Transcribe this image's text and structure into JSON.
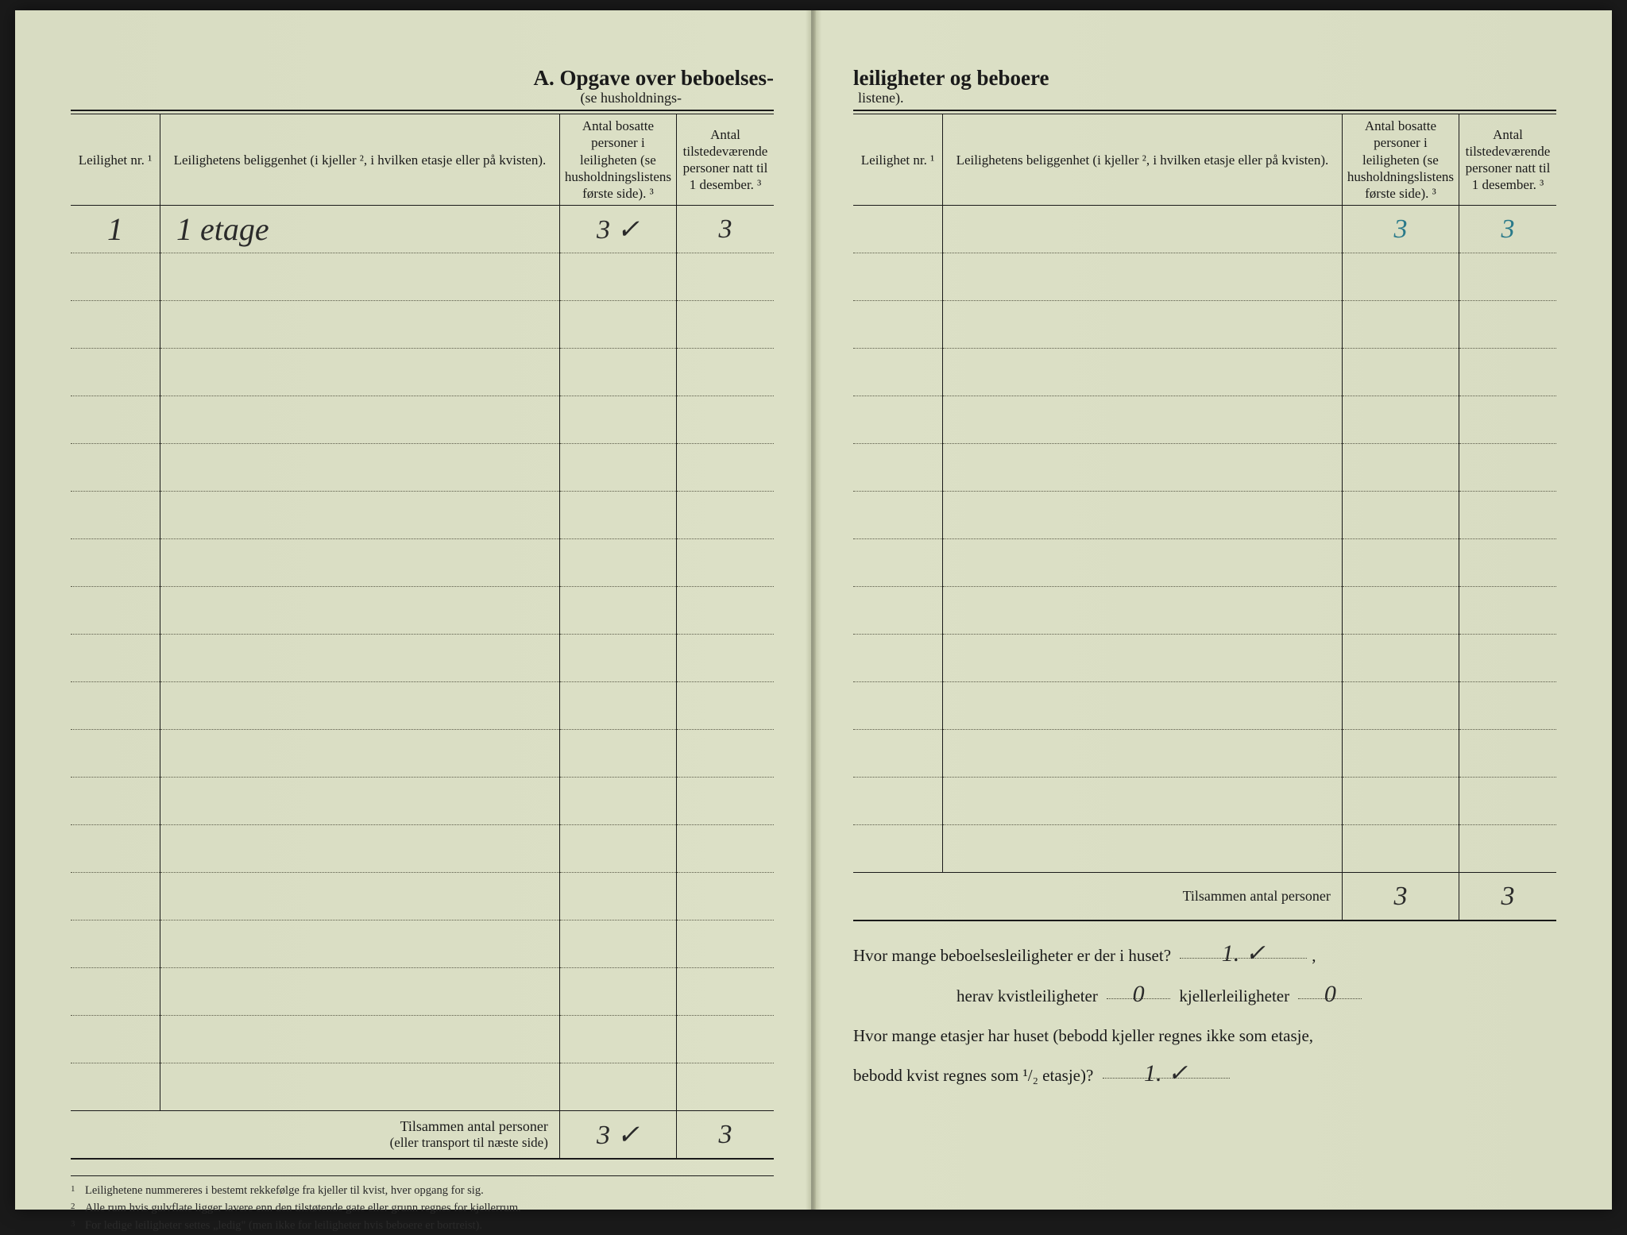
{
  "page_bg": "#d8dcc2",
  "ink": "#1a1a1a",
  "hw_ink": "#2a2a2a",
  "hw_blue": "#2a7a8a",
  "title": {
    "left_main": "A.   Opgave over beboelses-",
    "left_sub": "(se husholdnings-",
    "right_main": "leiligheter og beboere",
    "right_sub": "listene)."
  },
  "headers": {
    "col1": "Leilighet nr. ¹",
    "col2": "Leilighetens beliggenhet (i kjeller ², i hvilken etasje eller på kvisten).",
    "col3": "Antal bosatte personer i leiligheten (se husholdningslistens første side). ³",
    "col4": "Antal tilstedeværende personer natt til 1 desember. ³"
  },
  "left_rows": [
    {
      "nr": "1",
      "loc": "1 etage",
      "n1": "3  ✓",
      "n2": "3"
    }
  ],
  "left_blank_rows": 18,
  "right_blank_rows": 14,
  "right_totals": {
    "n1": "3",
    "n2": "3"
  },
  "left_totals": {
    "label": "Tilsammen antal personer",
    "sublabel": "(eller transport til næste side)",
    "n1": "3  ✓",
    "n2": "3"
  },
  "right_totals_label": "Tilsammen antal personer",
  "footnotes": {
    "f1": "Leilighetene nummereres i bestemt rekkefølge fra kjeller til kvist, hver opgang for sig.",
    "f2": "Alle rum hvis gulvflate ligger lavere enn den tilstøtende gate eller grunn regnes for kjellerrum.",
    "f3": "For ledige leiligheter settes „ledig\" (men ikke for leiligheter hvis beboere er bortreist)."
  },
  "questions": {
    "q1_pre": "Hvor mange beboelsesleiligheter er der i huset?",
    "q1_ans": "1. ✓",
    "q2_a": "herav kvistleiligheter",
    "q2_a_ans": "0",
    "q2_b": "kjellerleiligheter",
    "q2_b_ans": "0",
    "q3_pre": "Hvor  mange  etasjer  har  huset  (bebodd  kjeller  regnes  ikke  som  etasje,",
    "q3_post": "bebodd kvist regnes som ¹/₂ etasje)?",
    "q3_ans": "1. ✓"
  }
}
